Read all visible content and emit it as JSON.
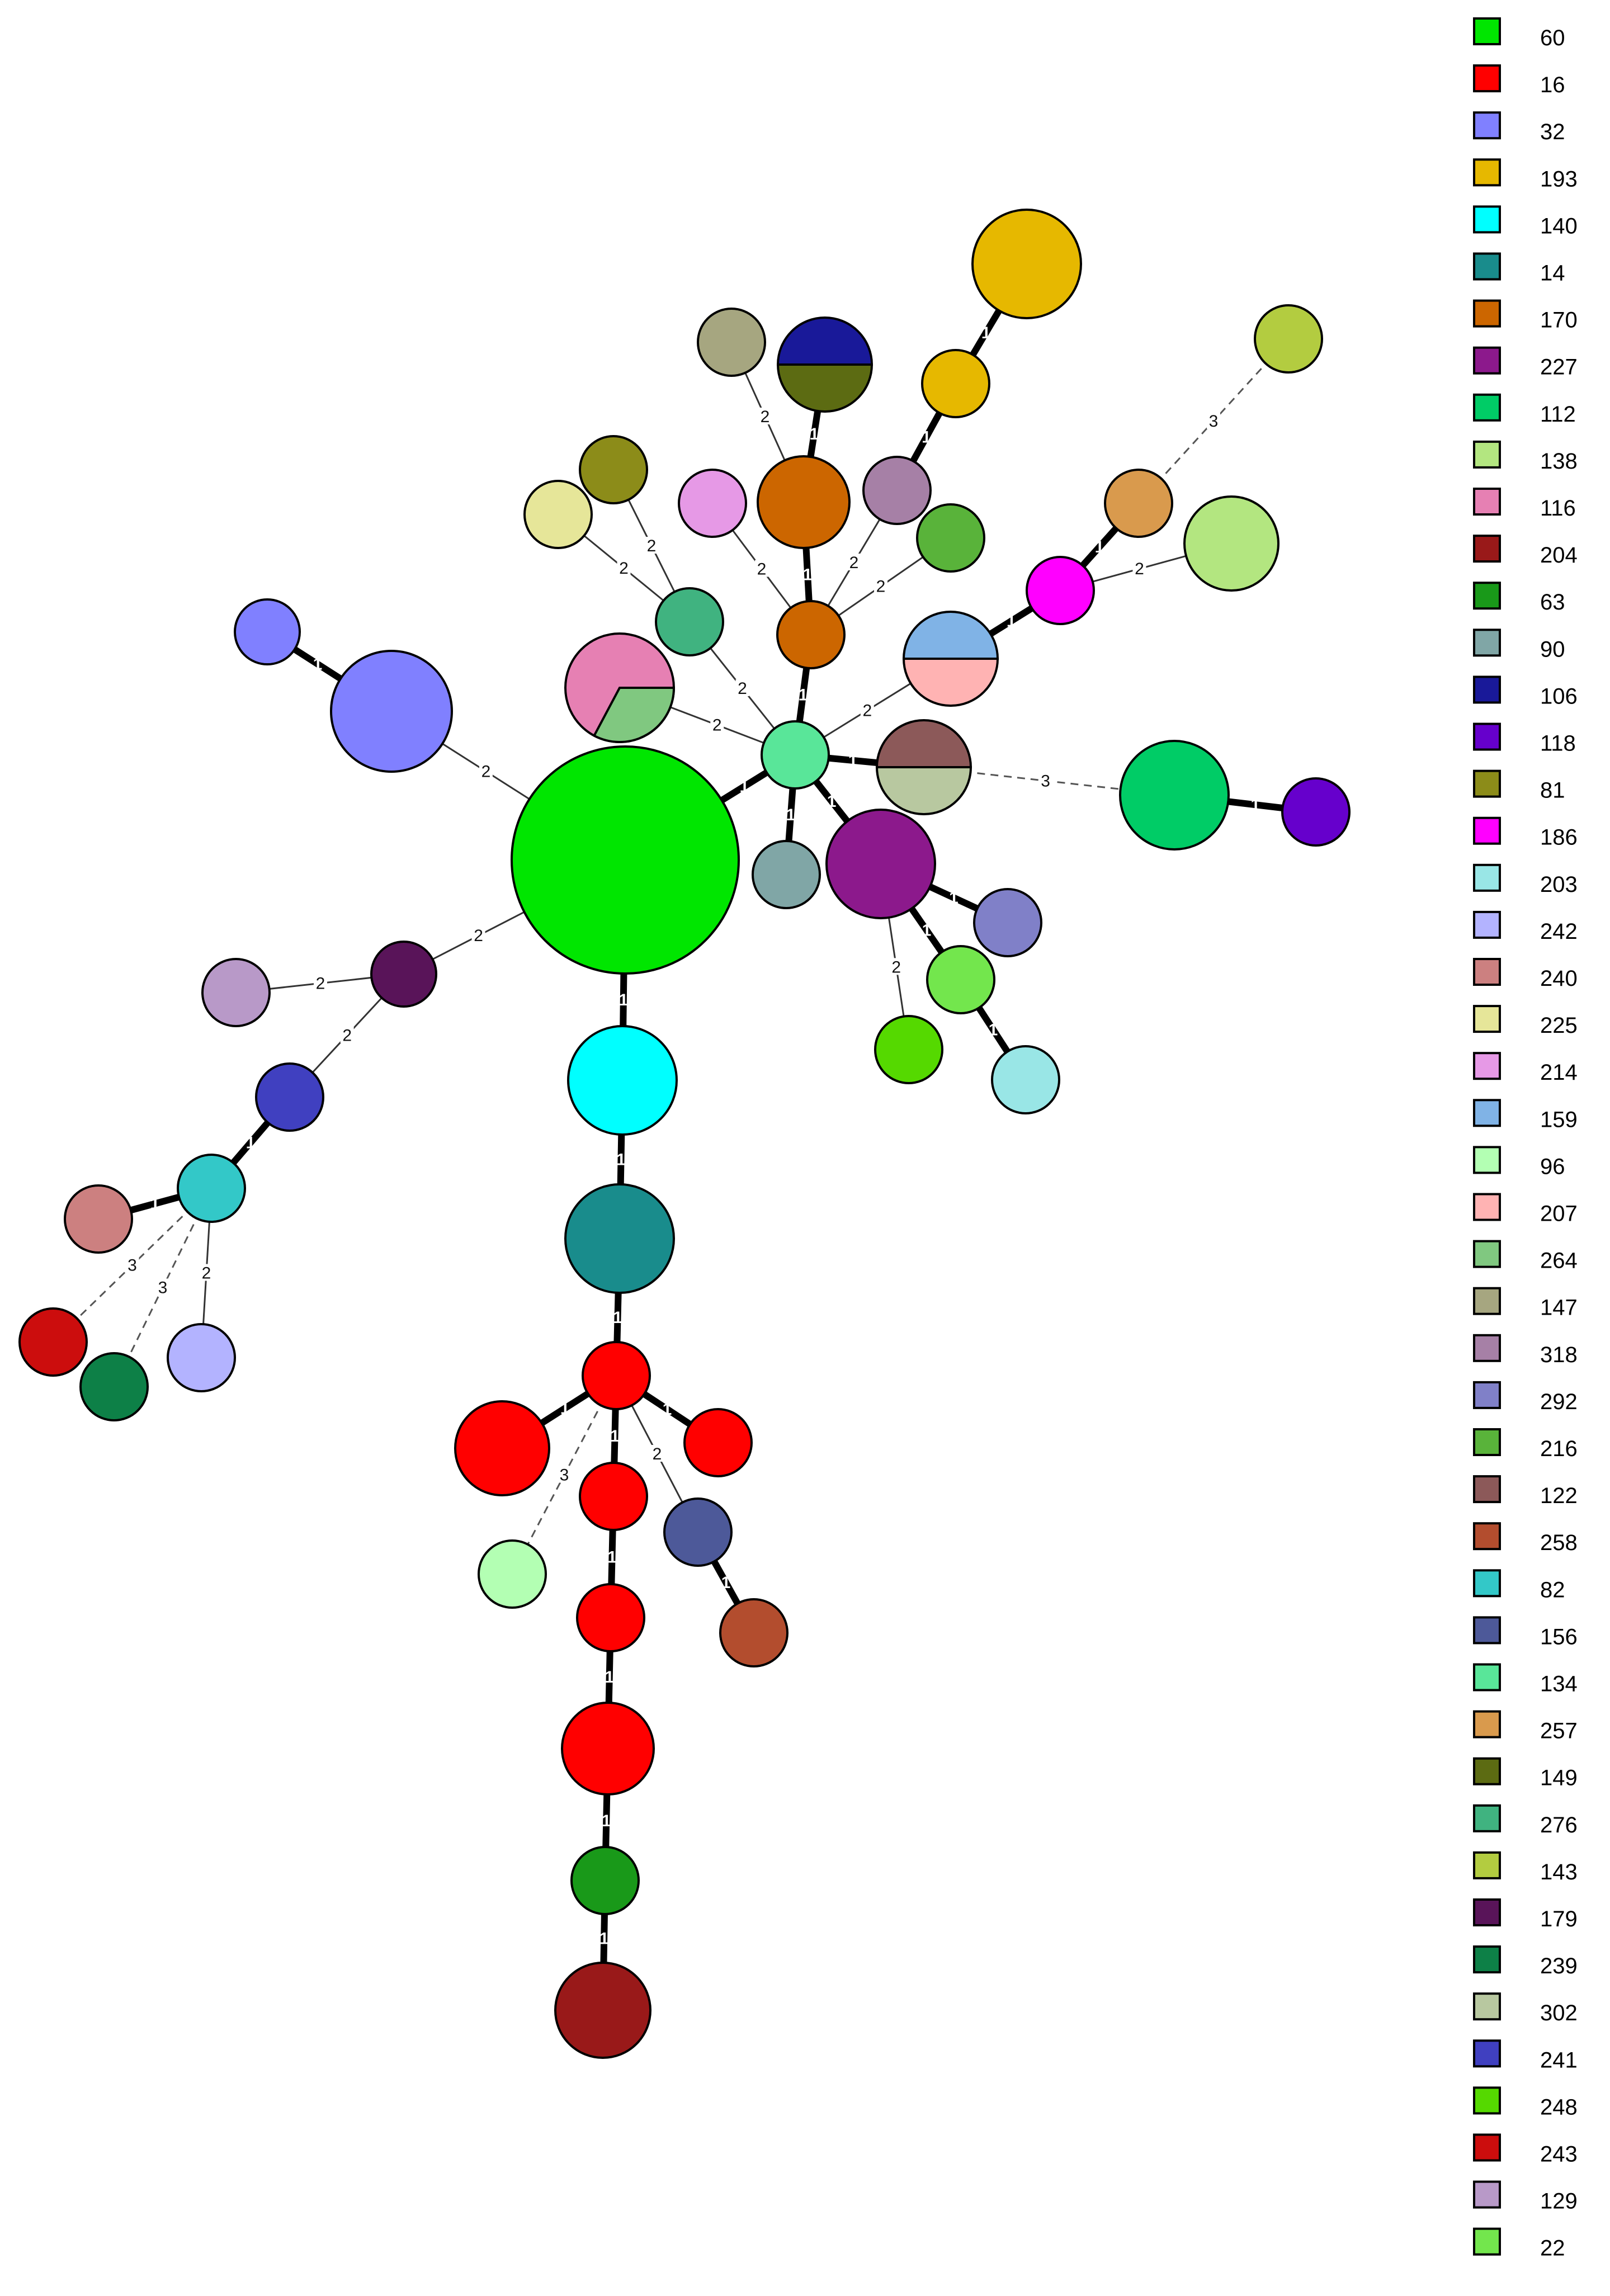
{
  "legend": [
    {
      "label": "60",
      "color": "#00e600"
    },
    {
      "label": "16",
      "color": "#ff0000"
    },
    {
      "label": "32",
      "color": "#8080ff"
    },
    {
      "label": "193",
      "color": "#e6b800"
    },
    {
      "label": "140",
      "color": "#00ffff"
    },
    {
      "label": "14",
      "color": "#198c8c"
    },
    {
      "label": "170",
      "color": "#cc6600"
    },
    {
      "label": "227",
      "color": "#8c198c"
    },
    {
      "label": "112",
      "color": "#00cc66"
    },
    {
      "label": "138",
      "color": "#b3e680"
    },
    {
      "label": "116",
      "color": "#e680b3"
    },
    {
      "label": "204",
      "color": "#991919"
    },
    {
      "label": "63",
      "color": "#199919"
    },
    {
      "label": "90",
      "color": "#80a6a6"
    },
    {
      "label": "106",
      "color": "#191999"
    },
    {
      "label": "118",
      "color": "#6600cc"
    },
    {
      "label": "81",
      "color": "#8c8c19"
    },
    {
      "label": "186",
      "color": "#ff00ff"
    },
    {
      "label": "203",
      "color": "#99e6e6"
    },
    {
      "label": "242",
      "color": "#b3b3ff"
    },
    {
      "label": "240",
      "color": "#cc8080"
    },
    {
      "label": "225",
      "color": "#e6e699"
    },
    {
      "label": "214",
      "color": "#e699e6"
    },
    {
      "label": "159",
      "color": "#80b3e6"
    },
    {
      "label": "96",
      "color": "#b3ffb3"
    },
    {
      "label": "207",
      "color": "#ffb3b3"
    },
    {
      "label": "264",
      "color": "#80c880"
    },
    {
      "label": "147",
      "color": "#a6a680"
    },
    {
      "label": "318",
      "color": "#a680a6"
    },
    {
      "label": "292",
      "color": "#8080c8"
    },
    {
      "label": "216",
      "color": "#59b33a"
    },
    {
      "label": "122",
      "color": "#8c5959"
    },
    {
      "label": "258",
      "color": "#b34d2e"
    },
    {
      "label": "82",
      "color": "#33c8c8"
    },
    {
      "label": "156",
      "color": "#4d5999"
    },
    {
      "label": "134",
      "color": "#59e699"
    },
    {
      "label": "257",
      "color": "#d99a4d"
    },
    {
      "label": "149",
      "color": "#5c6b12"
    },
    {
      "label": "276",
      "color": "#40b380"
    },
    {
      "label": "143",
      "color": "#b3cc40"
    },
    {
      "label": "179",
      "color": "#591459"
    },
    {
      "label": "239",
      "color": "#0d8047"
    },
    {
      "label": "302",
      "color": "#b8c8a0"
    },
    {
      "label": "241",
      "color": "#4040c0"
    },
    {
      "label": "248",
      "color": "#55d900"
    },
    {
      "label": "243",
      "color": "#cc0d0d"
    },
    {
      "label": "129",
      "color": "#b899c8"
    },
    {
      "label": "22",
      "color": "#73e64d"
    }
  ],
  "edge_labels": [
    "1",
    "2",
    "3"
  ]
}
